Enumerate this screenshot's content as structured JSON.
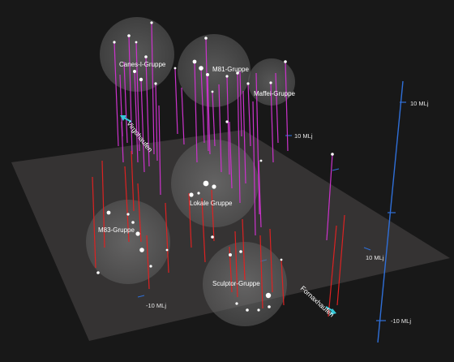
{
  "groups": {
    "canes": "Canes-I-Gruppe",
    "m81": "M81-Gruppe",
    "maffei": "Maffei-Gruppe",
    "local": "Lokale Gruppe",
    "m83": "M83-Gruppe",
    "sculptor": "Sculptor-Gruppe"
  },
  "directions": {
    "virgo": "Virgohaufen",
    "fornax": "Fornaxhaufen"
  },
  "axis_labels": {
    "z_top": "10 MLj",
    "mid_right": "10 MLj",
    "plane_right": "10 MLj",
    "plane_left": "-10 MLj",
    "z_bottom": "-10 MLj"
  },
  "colors": {
    "above_plane": "#cc33cc",
    "below_plane": "#dd2222",
    "axis": "#2f6fd8",
    "arrow": "#35c8d8"
  }
}
